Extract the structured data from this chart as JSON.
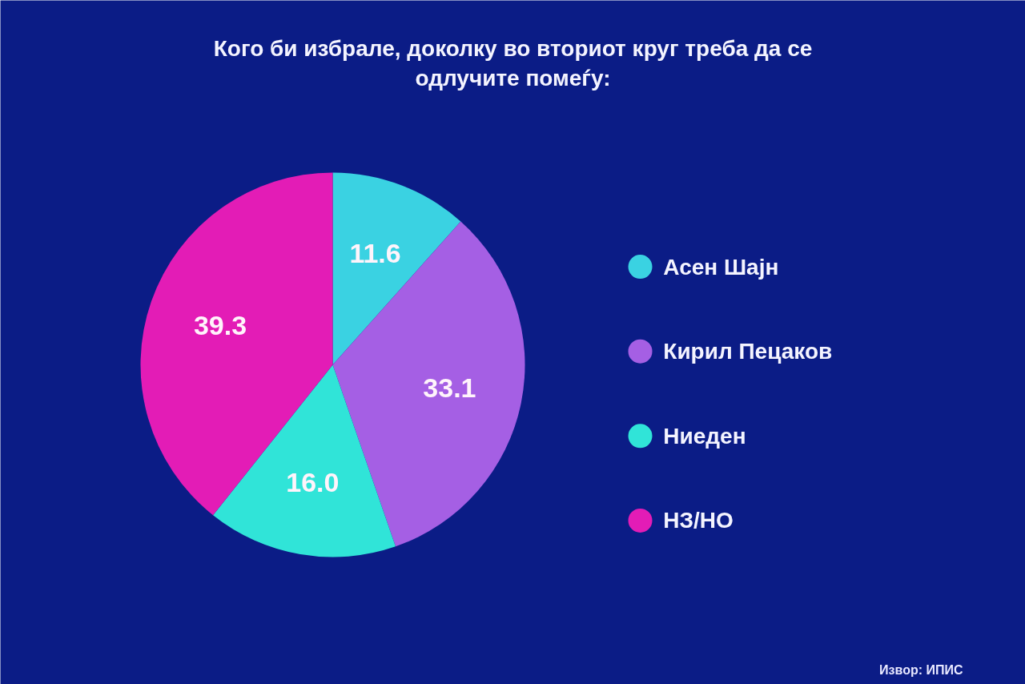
{
  "chart_data": {
    "type": "pie",
    "title": "Кого би избрале, доколку во вториот круг треба да се одлучите помеѓу:",
    "categories": [
      "Асен Шајн",
      "Кирил Пецаков",
      "Ниеден",
      "НЗ/НО"
    ],
    "values": [
      11.6,
      33.1,
      16.0,
      39.3
    ],
    "value_labels": [
      "11.6",
      "33.1",
      "16.0",
      "39.3"
    ],
    "colors": [
      "#3ad2e2",
      "#a55fe4",
      "#30e4d8",
      "#e31cb6"
    ],
    "legend": "right",
    "annotations": [
      "Извор: ИПИС"
    ]
  }
}
